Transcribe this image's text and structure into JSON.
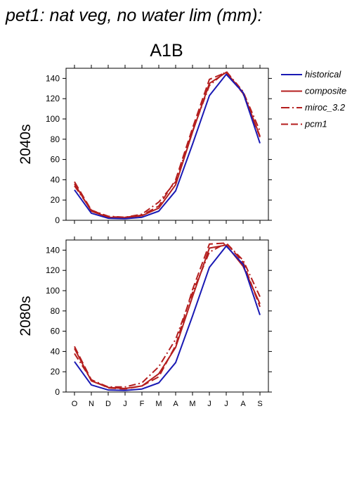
{
  "page_title": "pet1: nat veg, no water lim (mm):",
  "chart_data": {
    "type": "line",
    "title": "A1B",
    "categories": [
      "O",
      "N",
      "D",
      "J",
      "F",
      "M",
      "A",
      "M",
      "J",
      "J",
      "A",
      "S"
    ],
    "ylim": [
      0,
      150
    ],
    "yticks": [
      0,
      20,
      40,
      60,
      80,
      100,
      120,
      140
    ],
    "legend": {
      "placement": "right",
      "entries": [
        {
          "name": "historical",
          "color": "#1a1ab4",
          "dash": "solid"
        },
        {
          "name": "composite",
          "color": "#b41e1e",
          "dash": "solid"
        },
        {
          "name": "miroc_3.2",
          "color": "#b41e1e",
          "dash": "dashdot"
        },
        {
          "name": "pcm1",
          "color": "#b41e1e",
          "dash": "dashed"
        }
      ]
    },
    "panels": [
      {
        "label": "2040s",
        "series": [
          {
            "name": "historical",
            "values": [
              30,
              7,
              2,
              1.5,
              3,
              9,
              29,
              75,
              123,
              144,
              126,
              76
            ]
          },
          {
            "name": "composite",
            "values": [
              36,
              9,
              3,
              2.5,
              4.5,
              12,
              35,
              87,
              135,
              146,
              126,
              83
            ]
          },
          {
            "name": "miroc_3.2",
            "values": [
              34,
              10,
              4,
              3,
              6,
              18,
              38,
              88,
              133,
              147,
              127,
              88
            ]
          },
          {
            "name": "pcm1",
            "values": [
              38,
              10,
              3.5,
              3,
              5,
              14,
              40,
              91,
              139,
              146,
              125,
              82
            ]
          }
        ]
      },
      {
        "label": "2080s",
        "series": [
          {
            "name": "historical",
            "values": [
              30,
              7,
              2,
              1.5,
              3,
              9,
              29,
              75,
              123,
              144,
              126,
              76
            ]
          },
          {
            "name": "composite",
            "values": [
              43,
              11,
              4.5,
              3.5,
              6,
              18,
              44,
              94,
              142,
              145,
              124,
              87
            ]
          },
          {
            "name": "miroc_3.2",
            "values": [
              38,
              12,
              5,
              5,
              9,
              25,
              52,
              98,
              138,
              147,
              130,
              94
            ]
          },
          {
            "name": "pcm1",
            "values": [
              45,
              12,
              4,
              3,
              6,
              15,
              46,
              101,
              146,
              147,
              128,
              84
            ]
          }
        ]
      }
    ]
  }
}
